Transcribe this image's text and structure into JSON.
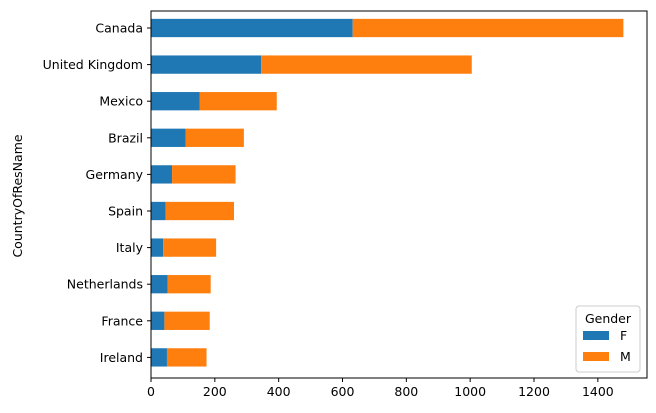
{
  "chart_data": {
    "type": "bar",
    "orientation": "horizontal",
    "stacked": true,
    "categories": [
      "Canada",
      "United Kingdom",
      "Mexico",
      "Brazil",
      "Germany",
      "Spain",
      "Italy",
      "Netherlands",
      "France",
      "Ireland"
    ],
    "series": [
      {
        "name": "F",
        "color": "#1f77b4",
        "values": [
          632,
          345,
          152,
          108,
          66,
          46,
          38,
          52,
          42,
          50
        ]
      },
      {
        "name": "M",
        "color": "#ff7f0e",
        "values": [
          848,
          660,
          242,
          183,
          199,
          214,
          166,
          135,
          142,
          124
        ]
      }
    ],
    "xlabel": "",
    "ylabel": "CountryOfResName",
    "xlim": [
      0,
      1554
    ],
    "xticks": [
      0,
      200,
      400,
      600,
      800,
      1000,
      1200,
      1400
    ],
    "grid": false,
    "legend": {
      "title": "Gender",
      "placement": "lower-right"
    }
  }
}
